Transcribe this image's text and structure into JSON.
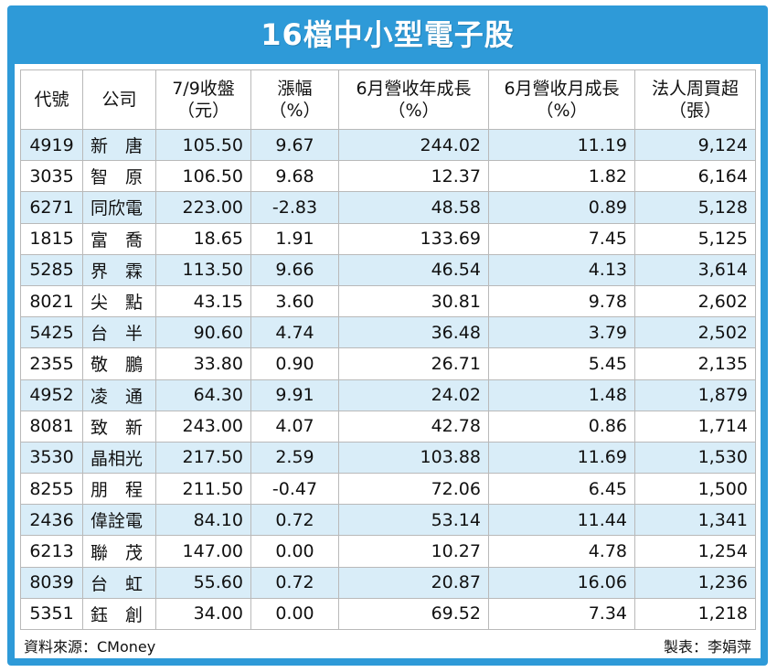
{
  "title": "16檔中小型電子股",
  "headers": [
    {
      "line1": "代號",
      "line2": ""
    },
    {
      "line1": "公司",
      "line2": ""
    },
    {
      "line1": "7/9收盤",
      "line2": "（元）"
    },
    {
      "line1": "漲幅",
      "line2": "（%）"
    },
    {
      "line1": "6月營收年成長",
      "line2": "（%）"
    },
    {
      "line1": "6月營收月成長",
      "line2": "（%）"
    },
    {
      "line1": "法人周買超",
      "line2": "（張）"
    }
  ],
  "rows": [
    [
      "4919",
      "新　唐",
      "105.50",
      "9.67",
      "244.02",
      "11.19",
      "9,124"
    ],
    [
      "3035",
      "智　原",
      "106.50",
      "9.68",
      "12.37",
      "1.82",
      "6,164"
    ],
    [
      "6271",
      "同欣電",
      "223.00",
      "-2.83",
      "48.58",
      "0.89",
      "5,128"
    ],
    [
      "1815",
      "富　喬",
      "18.65",
      "1.91",
      "133.69",
      "7.45",
      "5,125"
    ],
    [
      "5285",
      "界　霖",
      "113.50",
      "9.66",
      "46.54",
      "4.13",
      "3,614"
    ],
    [
      "8021",
      "尖　點",
      "43.15",
      "3.60",
      "30.81",
      "9.78",
      "2,602"
    ],
    [
      "5425",
      "台　半",
      "90.60",
      "4.74",
      "36.48",
      "3.79",
      "2,502"
    ],
    [
      "2355",
      "敬　鵬",
      "33.80",
      "0.90",
      "26.71",
      "5.45",
      "2,135"
    ],
    [
      "4952",
      "凌　通",
      "64.30",
      "9.91",
      "24.02",
      "1.48",
      "1,879"
    ],
    [
      "8081",
      "致　新",
      "243.00",
      "4.07",
      "42.78",
      "0.86",
      "1,714"
    ],
    [
      "3530",
      "晶相光",
      "217.50",
      "2.59",
      "103.88",
      "11.69",
      "1,530"
    ],
    [
      "8255",
      "朋　程",
      "211.50",
      "-0.47",
      "72.06",
      "6.45",
      "1,500"
    ],
    [
      "2436",
      "偉詮電",
      "84.10",
      "0.72",
      "53.14",
      "11.44",
      "1,341"
    ],
    [
      "6213",
      "聯　茂",
      "147.00",
      "0.00",
      "10.27",
      "4.78",
      "1,254"
    ],
    [
      "8039",
      "台　虹",
      "55.60",
      "0.72",
      "20.87",
      "16.06",
      "1,236"
    ],
    [
      "5351",
      "鈺　創",
      "34.00",
      "0.00",
      "69.52",
      "7.34",
      "1,218"
    ]
  ],
  "footer": {
    "source": "資料來源：CMoney",
    "maker": "製表：李娟萍"
  },
  "colors": {
    "frame": "#2e9ad8",
    "row_stripe": "#d9edf8",
    "title_text": "#ffffff"
  },
  "chart_data": {
    "type": "table",
    "title": "16檔中小型電子股",
    "columns": [
      "代號",
      "公司",
      "7/9收盤（元）",
      "漲幅（%）",
      "6月營收年成長（%）",
      "6月營收月成長（%）",
      "法人周買超（張）"
    ]
  }
}
